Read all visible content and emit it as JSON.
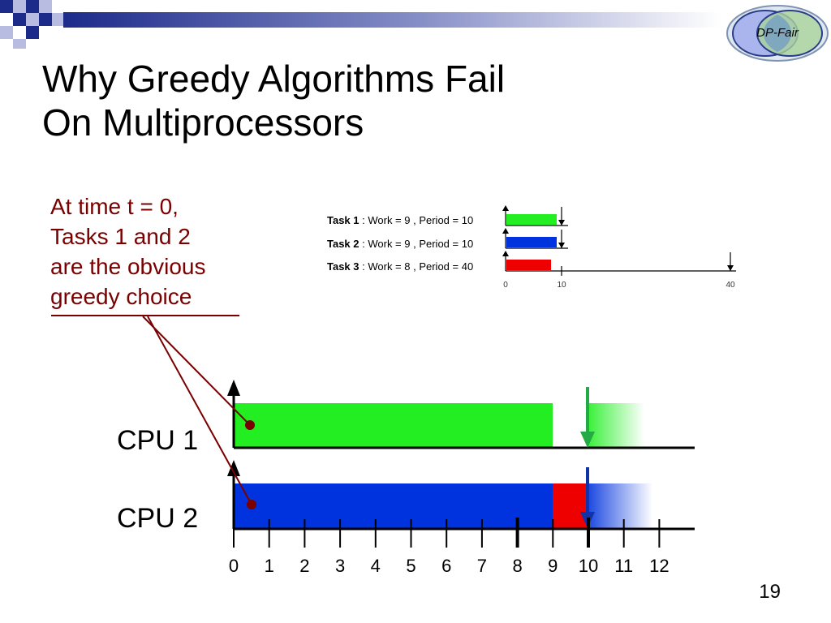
{
  "slide": {
    "title_line1": "Why Greedy Algorithms Fail",
    "title_line2": "On Multiprocessors",
    "logo_text": "DP-Fair",
    "page_number": "19"
  },
  "callout": {
    "lines": [
      "At time t = 0,",
      "Tasks 1 and 2",
      "are the obvious",
      "greedy choice"
    ]
  },
  "tasks": [
    {
      "name": "Task 1",
      "work": 9,
      "period": 10,
      "label": "Task 1",
      "details": " : Work = 9 , Period = 10",
      "color": "#22ee22"
    },
    {
      "name": "Task 2",
      "work": 9,
      "period": 10,
      "label": "Task 2",
      "details": " : Work = 9 , Period = 10",
      "color": "#0033dd"
    },
    {
      "name": "Task 3",
      "work": 8,
      "period": 40,
      "label": "Task 3",
      "details": " : Work = 8 , Period = 40",
      "color": "#ee0000"
    }
  ],
  "task_axis_ticks": [
    "0",
    "10",
    "40"
  ],
  "schedule": {
    "cpus": [
      {
        "label": "CPU 1",
        "segments": [
          {
            "task": "Task 1",
            "start": 0,
            "end": 9,
            "color": "#22ee22"
          }
        ],
        "deadline": 10,
        "deadline_color": "#22aa44"
      },
      {
        "label": "CPU 2",
        "segments": [
          {
            "task": "Task 2",
            "start": 0,
            "end": 9,
            "color": "#0033dd"
          },
          {
            "task": "Task 3",
            "start": 9,
            "end": 10,
            "color": "#ee0000"
          }
        ],
        "deadline": 10,
        "deadline_color": "#1133aa"
      }
    ],
    "time_ticks": [
      "0",
      "1",
      "2",
      "3",
      "4",
      "5",
      "6",
      "7",
      "8",
      "9",
      "10",
      "11",
      "12"
    ]
  },
  "colors": {
    "callout": "#7a0000",
    "task1": "#22ee22",
    "task2": "#0033dd",
    "task3": "#ee0000"
  }
}
